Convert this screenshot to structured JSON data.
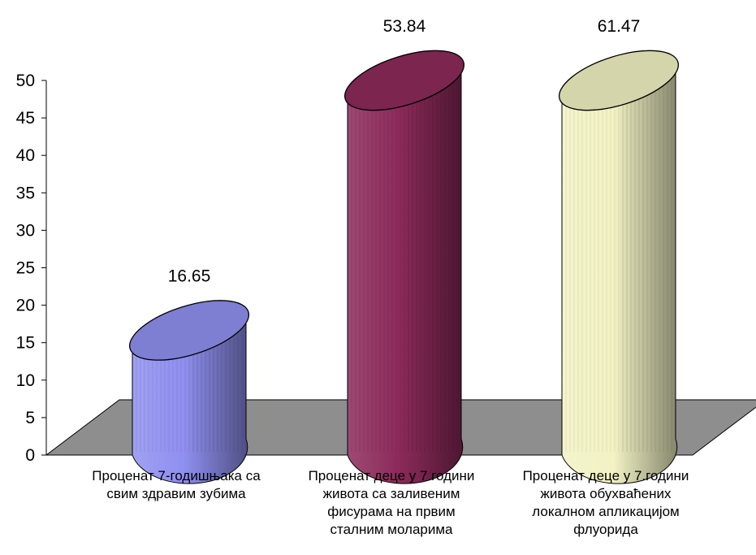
{
  "chart_data": {
    "type": "bar",
    "style": "3d-cylinder",
    "categories": [
      "Проценат 7-годишњака са свим здравим зубима",
      "Проценат деце у 7.години живота са заливеним фисурама на првим сталним моларима",
      "Проценат деце у 7.години живота обухваћених локалном апликацијом флуорида"
    ],
    "category_lines": [
      [
        "Проценат 7-годишњака са",
        "свим здравим зубима"
      ],
      [
        "Проценат деце у 7.години",
        "живота са заливеним",
        "фисурама на првим",
        "сталним моларима"
      ],
      [
        "Проценат деце у 7.години",
        "живота обухваћених",
        "локалном апликацијом",
        "флуорида"
      ]
    ],
    "values": [
      16.65,
      53.84,
      61.47
    ],
    "data_labels": [
      "16.65",
      "53.84",
      "61.47"
    ],
    "ylim": [
      0,
      50
    ],
    "yticks": [
      "0",
      "5",
      "10",
      "15",
      "20",
      "25",
      "30",
      "35",
      "40",
      "45",
      "50"
    ],
    "grid": false,
    "legend": "none",
    "colors": {
      "bars": [
        "#8f8ff0",
        "#8c2a5a",
        "#f2f2c4"
      ],
      "floor": "#8e8e8e",
      "axis": "#000000"
    }
  }
}
